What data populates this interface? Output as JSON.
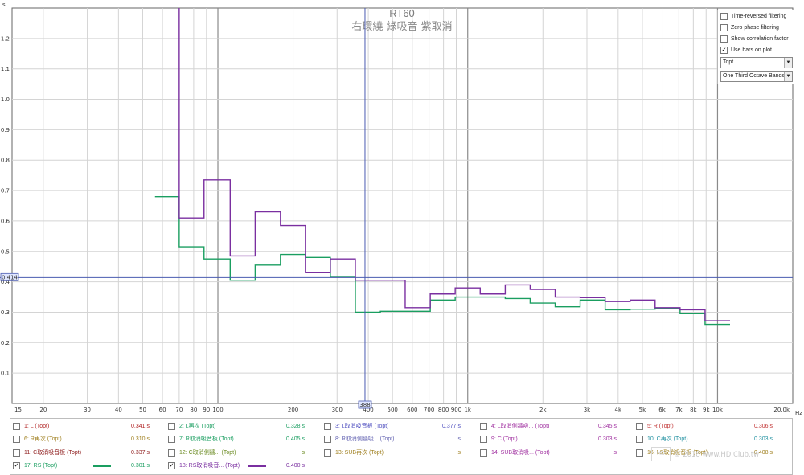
{
  "chart_data": {
    "type": "line",
    "title": "RT60",
    "subtitle": "右環繞 綠吸音 紫取消",
    "y_unit": "s",
    "x_unit": "Hz",
    "x_scale": "log",
    "xlim": [
      15,
      20000
    ],
    "ylim": [
      0,
      1.3
    ],
    "grid": true,
    "x_ticks": [
      "15",
      "20",
      "30",
      "40",
      "50",
      "60",
      "70",
      "80",
      "90",
      "100",
      "200",
      "300",
      "400",
      "500",
      "600",
      "700",
      "800",
      "900",
      "1k",
      "2k",
      "3k",
      "4k",
      "5k",
      "6k",
      "7k",
      "8k",
      "9k",
      "10k",
      "20.0k"
    ],
    "y_ticks": [
      "0.1",
      "0.2",
      "0.3",
      "0.4",
      "0.5",
      "0.6",
      "0.7",
      "0.8",
      "0.9",
      "1.0",
      "1.1",
      "1.2"
    ],
    "cursor": {
      "x_label": "388",
      "y_label": "0.414",
      "x": 388,
      "y": 0.414
    },
    "series": [
      {
        "name": "17: RS (Topt)",
        "color": "#1a9e60",
        "points": [
          [
            56,
            0.68
          ],
          [
            70,
            0.68
          ],
          [
            70,
            0.515
          ],
          [
            88,
            0.515
          ],
          [
            88,
            0.475
          ],
          [
            112,
            0.475
          ],
          [
            112,
            0.405
          ],
          [
            141,
            0.405
          ],
          [
            141,
            0.455
          ],
          [
            178,
            0.455
          ],
          [
            178,
            0.49
          ],
          [
            224,
            0.49
          ],
          [
            224,
            0.48
          ],
          [
            282,
            0.48
          ],
          [
            282,
            0.415
          ],
          [
            355,
            0.415
          ],
          [
            355,
            0.3
          ],
          [
            447,
            0.3
          ],
          [
            447,
            0.303
          ],
          [
            708,
            0.303
          ],
          [
            708,
            0.34
          ],
          [
            891,
            0.34
          ],
          [
            891,
            0.35
          ],
          [
            1413,
            0.35
          ],
          [
            1413,
            0.345
          ],
          [
            1778,
            0.345
          ],
          [
            1778,
            0.33
          ],
          [
            2239,
            0.33
          ],
          [
            2239,
            0.318
          ],
          [
            2818,
            0.318
          ],
          [
            2818,
            0.34
          ],
          [
            3548,
            0.34
          ],
          [
            3548,
            0.308
          ],
          [
            4467,
            0.308
          ],
          [
            4467,
            0.31
          ],
          [
            5623,
            0.31
          ],
          [
            5623,
            0.312
          ],
          [
            7079,
            0.312
          ],
          [
            7079,
            0.295
          ],
          [
            8913,
            0.295
          ],
          [
            8913,
            0.26
          ],
          [
            11220,
            0.26
          ]
        ]
      },
      {
        "name": "18: RS取消吸音... (Topt)",
        "color": "#7a2fa0",
        "points": [
          [
            70,
            1.3
          ],
          [
            70,
            0.61
          ],
          [
            88,
            0.61
          ],
          [
            88,
            0.735
          ],
          [
            112,
            0.735
          ],
          [
            112,
            0.485
          ],
          [
            141,
            0.485
          ],
          [
            141,
            0.63
          ],
          [
            178,
            0.63
          ],
          [
            178,
            0.585
          ],
          [
            224,
            0.585
          ],
          [
            224,
            0.43
          ],
          [
            282,
            0.43
          ],
          [
            282,
            0.475
          ],
          [
            355,
            0.475
          ],
          [
            355,
            0.405
          ],
          [
            562,
            0.405
          ],
          [
            562,
            0.315
          ],
          [
            708,
            0.315
          ],
          [
            708,
            0.36
          ],
          [
            891,
            0.36
          ],
          [
            891,
            0.38
          ],
          [
            1122,
            0.38
          ],
          [
            1122,
            0.36
          ],
          [
            1413,
            0.36
          ],
          [
            1413,
            0.39
          ],
          [
            1778,
            0.39
          ],
          [
            1778,
            0.375
          ],
          [
            2239,
            0.375
          ],
          [
            2239,
            0.35
          ],
          [
            2818,
            0.35
          ],
          [
            2818,
            0.348
          ],
          [
            3548,
            0.348
          ],
          [
            3548,
            0.335
          ],
          [
            4467,
            0.335
          ],
          [
            4467,
            0.34
          ],
          [
            5623,
            0.34
          ],
          [
            5623,
            0.315
          ],
          [
            7079,
            0.315
          ],
          [
            7079,
            0.308
          ],
          [
            8913,
            0.308
          ],
          [
            8913,
            0.272
          ],
          [
            11220,
            0.272
          ]
        ]
      }
    ]
  },
  "options": {
    "time_reversed": "Time-reversed filtering",
    "zero_phase": "Zero phase filtering",
    "show_corr": "Show correlation factor",
    "use_bars": "Use bars on plot",
    "check": "✓",
    "param_select": "Topt",
    "bands_select": "One Third Octave Bands",
    "arrow": "▼"
  },
  "legend": [
    {
      "name": "1: L (Topt)",
      "value": "0.341 s",
      "color": "#b02020",
      "checked": false
    },
    {
      "name": "2: L再次 (Topt)",
      "value": "0.328 s",
      "color": "#1a9e60",
      "checked": false
    },
    {
      "name": "3: L取消吸音板 (Topt)",
      "value": "0.377 s",
      "color": "#5050c0",
      "checked": false
    },
    {
      "name": "4: L取消側牆吸... (Topt)",
      "value": "0.345 s",
      "color": "#a030a0",
      "checked": false
    },
    {
      "name": "5: R (Topt)",
      "value": "0.306 s",
      "color": "#c03030",
      "checked": false
    },
    {
      "name": "6: R再次 (Topt)",
      "value": "0.310 s",
      "color": "#a08020",
      "checked": false
    },
    {
      "name": "7: R取消吸音板 (Topt)",
      "value": "0.405 s",
      "color": "#1a9e60",
      "checked": false
    },
    {
      "name": "8: R取消側牆吸... (Topt)",
      "value": "s",
      "color": "#6060b0",
      "checked": false
    },
    {
      "name": "9: C (Topt)",
      "value": "0.303 s",
      "color": "#a030a0",
      "checked": false
    },
    {
      "name": "10: C再次 (Topt)",
      "value": "0.303 s",
      "color": "#2090a0",
      "checked": false
    },
    {
      "name": "11: C取消吸音板 (Topt)",
      "value": "0.337 s",
      "color": "#902020",
      "checked": false
    },
    {
      "name": "12: C取消側牆... (Topt)",
      "value": "s",
      "color": "#6a8a20",
      "checked": false
    },
    {
      "name": "13: SUB再次 (Topt)",
      "value": "s",
      "color": "#a08020",
      "checked": false
    },
    {
      "name": "14: SUB取消吸... (Topt)",
      "value": "s",
      "color": "#a030a0",
      "checked": false
    },
    {
      "name": "16: LS取消吸音板 (Topt)",
      "value": "0.408 s",
      "color": "#a08020",
      "checked": false
    },
    {
      "name": "17: RS (Topt)",
      "value": "0.301 s",
      "color": "#1a9e60",
      "checked": true,
      "swatch": "#1a9e60"
    },
    {
      "name": "18: RS取消吸音... (Topt)",
      "value": "0.400 s",
      "color": "#7a2fa0",
      "checked": true,
      "swatch": "#7a2fa0"
    }
  ],
  "watermark": "© 2018 www.HD.Club.tw",
  "logo_text": "HD"
}
